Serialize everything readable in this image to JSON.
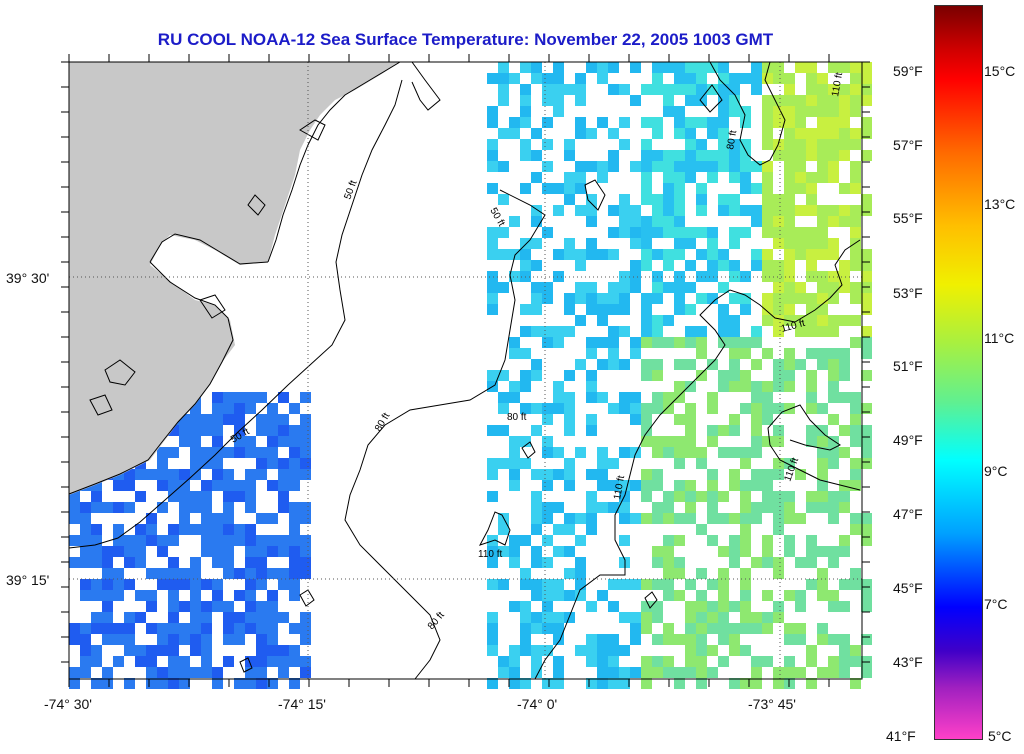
{
  "title": "RU COOL  NOAA-12  Sea Surface Temperature:  November 22, 2005 1003 GMT",
  "map": {
    "lon_labels": [
      "-74° 30'",
      "-74° 15'",
      "-74° 0'",
      "-73° 45'"
    ],
    "lat_labels": [
      "39° 30'",
      "39° 15'"
    ],
    "contour_labels": [
      "50 ft",
      "50 ft",
      "50 ft",
      "80 ft",
      "80 ft",
      "80 ft",
      "80 ft",
      "110 ft",
      "110 ft",
      "110 ft",
      "110 ft",
      "110 ft"
    ],
    "land_color": "#c8c8c8",
    "ocean_color": "#ffffff"
  },
  "colorbar": {
    "fahrenheit": [
      "59°F",
      "57°F",
      "55°F",
      "53°F",
      "51°F",
      "49°F",
      "47°F",
      "45°F",
      "43°F",
      "41°F"
    ],
    "celsius": [
      "15°C",
      "13°C",
      "11°C",
      "9°C",
      "7°C",
      "5°C"
    ]
  }
}
